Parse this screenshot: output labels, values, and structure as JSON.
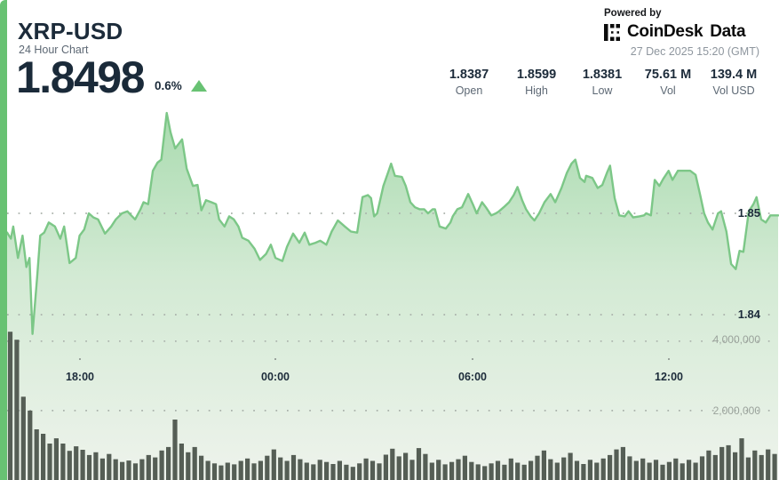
{
  "widget": {
    "symbol": "XRP-USD",
    "subtitle": "24 Hour Chart",
    "price": "1.8498",
    "change_percent": "0.6%",
    "change_direction": "up",
    "powered_by": "Powered by",
    "brand_name": "CoinDesk",
    "brand_suffix": "Data",
    "timestamp": "27 Dec 2025 15:20 (GMT)"
  },
  "stats": [
    {
      "value": "1.8387",
      "label": "Open"
    },
    {
      "value": "1.8599",
      "label": "High"
    },
    {
      "value": "1.8381",
      "label": "Low"
    },
    {
      "value": "75.61 M",
      "label": "Vol"
    },
    {
      "value": "139.4 M",
      "label": "Vol USD"
    }
  ],
  "colors": {
    "accent_green": "#68c273",
    "line_green": "#7cc787",
    "area_top": "#a9dbaf",
    "area_bottom": "#eef3ec",
    "text_dark": "#1c2b3a",
    "text_gray": "#5d6874",
    "axis_gray": "#9aa29b",
    "grid_dot": "#a9b1aa",
    "volume_bar": "#555e55"
  },
  "chart_data": {
    "type": "area",
    "title": "XRP-USD 24 Hour Chart",
    "open": 1.8387,
    "high": 1.8599,
    "low": 1.8381,
    "last": 1.8498,
    "volume": "75.61 M",
    "volume_usd": "139.4 M",
    "x_axis": {
      "labels": [
        "18:00",
        "00:00",
        "06:00",
        "12:00"
      ]
    },
    "price_axis": {
      "side": "right",
      "gridlines": [
        {
          "value": 1.85,
          "label": "1.85"
        },
        {
          "value": 1.84,
          "label": "1.84"
        }
      ]
    },
    "volume_axis": {
      "gridlines": [
        {
          "value": 4000000,
          "label": "4,000,000"
        },
        {
          "value": 2000000,
          "label": "2,000,000"
        }
      ]
    },
    "price_points": [
      [
        0.0,
        1.8481
      ],
      [
        0.005,
        1.8475
      ],
      [
        0.008,
        1.8487
      ],
      [
        0.014,
        1.8456
      ],
      [
        0.02,
        1.8478
      ],
      [
        0.025,
        1.8447
      ],
      [
        0.029,
        1.8456
      ],
      [
        0.033,
        1.8381
      ],
      [
        0.039,
        1.8438
      ],
      [
        0.043,
        1.8478
      ],
      [
        0.048,
        1.8481
      ],
      [
        0.054,
        1.8491
      ],
      [
        0.062,
        1.8487
      ],
      [
        0.069,
        1.8475
      ],
      [
        0.074,
        1.8487
      ],
      [
        0.081,
        1.8451
      ],
      [
        0.089,
        1.8456
      ],
      [
        0.094,
        1.8478
      ],
      [
        0.1,
        1.8484
      ],
      [
        0.106,
        1.85
      ],
      [
        0.112,
        1.8496
      ],
      [
        0.118,
        1.8494
      ],
      [
        0.127,
        1.848
      ],
      [
        0.135,
        1.8487
      ],
      [
        0.141,
        1.8494
      ],
      [
        0.149,
        1.85
      ],
      [
        0.156,
        1.8502
      ],
      [
        0.161,
        1.8498
      ],
      [
        0.166,
        1.8494
      ],
      [
        0.173,
        1.8504
      ],
      [
        0.177,
        1.8511
      ],
      [
        0.183,
        1.8509
      ],
      [
        0.189,
        1.8542
      ],
      [
        0.195,
        1.855
      ],
      [
        0.2,
        1.8553
      ],
      [
        0.207,
        1.8599
      ],
      [
        0.212,
        1.858
      ],
      [
        0.218,
        1.8564
      ],
      [
        0.227,
        1.8573
      ],
      [
        0.233,
        1.8544
      ],
      [
        0.241,
        1.8527
      ],
      [
        0.247,
        1.8528
      ],
      [
        0.252,
        1.8503
      ],
      [
        0.258,
        1.8513
      ],
      [
        0.265,
        1.8511
      ],
      [
        0.271,
        1.8509
      ],
      [
        0.275,
        1.8494
      ],
      [
        0.282,
        1.8487
      ],
      [
        0.288,
        1.8497
      ],
      [
        0.294,
        1.8494
      ],
      [
        0.3,
        1.8487
      ],
      [
        0.305,
        1.8476
      ],
      [
        0.313,
        1.8473
      ],
      [
        0.321,
        1.8465
      ],
      [
        0.328,
        1.8454
      ],
      [
        0.336,
        1.846
      ],
      [
        0.342,
        1.8469
      ],
      [
        0.348,
        1.8456
      ],
      [
        0.357,
        1.8453
      ],
      [
        0.363,
        1.8467
      ],
      [
        0.371,
        1.848
      ],
      [
        0.379,
        1.8471
      ],
      [
        0.386,
        1.8481
      ],
      [
        0.392,
        1.8469
      ],
      [
        0.4,
        1.8471
      ],
      [
        0.406,
        1.8473
      ],
      [
        0.414,
        1.8469
      ],
      [
        0.421,
        1.8482
      ],
      [
        0.429,
        1.8493
      ],
      [
        0.438,
        1.8487
      ],
      [
        0.446,
        1.8482
      ],
      [
        0.454,
        1.8481
      ],
      [
        0.461,
        1.8516
      ],
      [
        0.468,
        1.8518
      ],
      [
        0.472,
        1.8515
      ],
      [
        0.476,
        1.8497
      ],
      [
        0.48,
        1.85
      ],
      [
        0.488,
        1.8527
      ],
      [
        0.494,
        1.854
      ],
      [
        0.498,
        1.8549
      ],
      [
        0.503,
        1.8537
      ],
      [
        0.512,
        1.8536
      ],
      [
        0.517,
        1.8527
      ],
      [
        0.523,
        1.8511
      ],
      [
        0.529,
        1.8506
      ],
      [
        0.535,
        1.8504
      ],
      [
        0.541,
        1.8504
      ],
      [
        0.546,
        1.85
      ],
      [
        0.552,
        1.8504
      ],
      [
        0.555,
        1.8504
      ],
      [
        0.561,
        1.8487
      ],
      [
        0.569,
        1.8485
      ],
      [
        0.575,
        1.8491
      ],
      [
        0.578,
        1.8497
      ],
      [
        0.584,
        1.8504
      ],
      [
        0.59,
        1.8506
      ],
      [
        0.598,
        1.8519
      ],
      [
        0.604,
        1.8509
      ],
      [
        0.609,
        1.85
      ],
      [
        0.616,
        1.8511
      ],
      [
        0.621,
        1.8506
      ],
      [
        0.628,
        1.8498
      ],
      [
        0.634,
        1.85
      ],
      [
        0.638,
        1.8502
      ],
      [
        0.644,
        1.8506
      ],
      [
        0.651,
        1.8511
      ],
      [
        0.657,
        1.8518
      ],
      [
        0.662,
        1.8526
      ],
      [
        0.668,
        1.8513
      ],
      [
        0.673,
        1.8504
      ],
      [
        0.679,
        1.8497
      ],
      [
        0.684,
        1.8493
      ],
      [
        0.69,
        1.85
      ],
      [
        0.697,
        1.8511
      ],
      [
        0.705,
        1.8519
      ],
      [
        0.711,
        1.8511
      ],
      [
        0.719,
        1.8525
      ],
      [
        0.726,
        1.854
      ],
      [
        0.732,
        1.8549
      ],
      [
        0.737,
        1.8553
      ],
      [
        0.743,
        1.8535
      ],
      [
        0.749,
        1.8531
      ],
      [
        0.751,
        1.8537
      ],
      [
        0.759,
        1.8535
      ],
      [
        0.766,
        1.8525
      ],
      [
        0.772,
        1.8528
      ],
      [
        0.778,
        1.854
      ],
      [
        0.782,
        1.8547
      ],
      [
        0.788,
        1.8515
      ],
      [
        0.794,
        1.8498
      ],
      [
        0.801,
        1.8497
      ],
      [
        0.806,
        1.8502
      ],
      [
        0.812,
        1.8496
      ],
      [
        0.82,
        1.8497
      ],
      [
        0.826,
        1.8498
      ],
      [
        0.829,
        1.85
      ],
      [
        0.835,
        1.8498
      ],
      [
        0.84,
        1.8533
      ],
      [
        0.846,
        1.8527
      ],
      [
        0.851,
        1.8534
      ],
      [
        0.858,
        1.8542
      ],
      [
        0.863,
        1.8533
      ],
      [
        0.87,
        1.8542
      ],
      [
        0.878,
        1.8542
      ],
      [
        0.886,
        1.8542
      ],
      [
        0.893,
        1.8538
      ],
      [
        0.899,
        1.8518
      ],
      [
        0.904,
        1.85
      ],
      [
        0.909,
        1.8491
      ],
      [
        0.915,
        1.8484
      ],
      [
        0.922,
        1.85
      ],
      [
        0.926,
        1.8502
      ],
      [
        0.933,
        1.8482
      ],
      [
        0.939,
        1.845
      ],
      [
        0.945,
        1.8445
      ],
      [
        0.95,
        1.8463
      ],
      [
        0.955,
        1.8462
      ],
      [
        0.962,
        1.8502
      ],
      [
        0.968,
        1.8509
      ],
      [
        0.972,
        1.8516
      ],
      [
        0.978,
        1.8494
      ],
      [
        0.984,
        1.8491
      ],
      [
        0.99,
        1.8498
      ],
      [
        0.995,
        1.8498
      ],
      [
        1.0,
        1.8498
      ]
    ],
    "volume_bars_millions": [
      4.27,
      4.04,
      2.4,
      2.0,
      1.46,
      1.33,
      1.05,
      1.2,
      1.05,
      0.84,
      0.97,
      0.87,
      0.72,
      0.8,
      0.62,
      0.75,
      0.6,
      0.52,
      0.56,
      0.48,
      0.6,
      0.72,
      0.65,
      0.85,
      0.95,
      1.74,
      1.05,
      0.8,
      0.95,
      0.7,
      0.55,
      0.48,
      0.42,
      0.5,
      0.45,
      0.55,
      0.62,
      0.48,
      0.55,
      0.7,
      0.88,
      0.65,
      0.55,
      0.72,
      0.6,
      0.5,
      0.45,
      0.58,
      0.52,
      0.46,
      0.55,
      0.44,
      0.38,
      0.48,
      0.62,
      0.55,
      0.48,
      0.73,
      0.9,
      0.68,
      0.78,
      0.58,
      0.92,
      0.75,
      0.5,
      0.58,
      0.45,
      0.52,
      0.6,
      0.7,
      0.52,
      0.45,
      0.4,
      0.48,
      0.55,
      0.44,
      0.62,
      0.5,
      0.44,
      0.55,
      0.7,
      0.85,
      0.6,
      0.5,
      0.65,
      0.78,
      0.55,
      0.46,
      0.58,
      0.5,
      0.62,
      0.72,
      0.88,
      0.95,
      0.68,
      0.55,
      0.62,
      0.5,
      0.58,
      0.44,
      0.52,
      0.62,
      0.48,
      0.58,
      0.5,
      0.68,
      0.85,
      0.72,
      0.95,
      1.0,
      0.8,
      1.2,
      0.65,
      0.85,
      0.72,
      0.88,
      0.75
    ]
  }
}
